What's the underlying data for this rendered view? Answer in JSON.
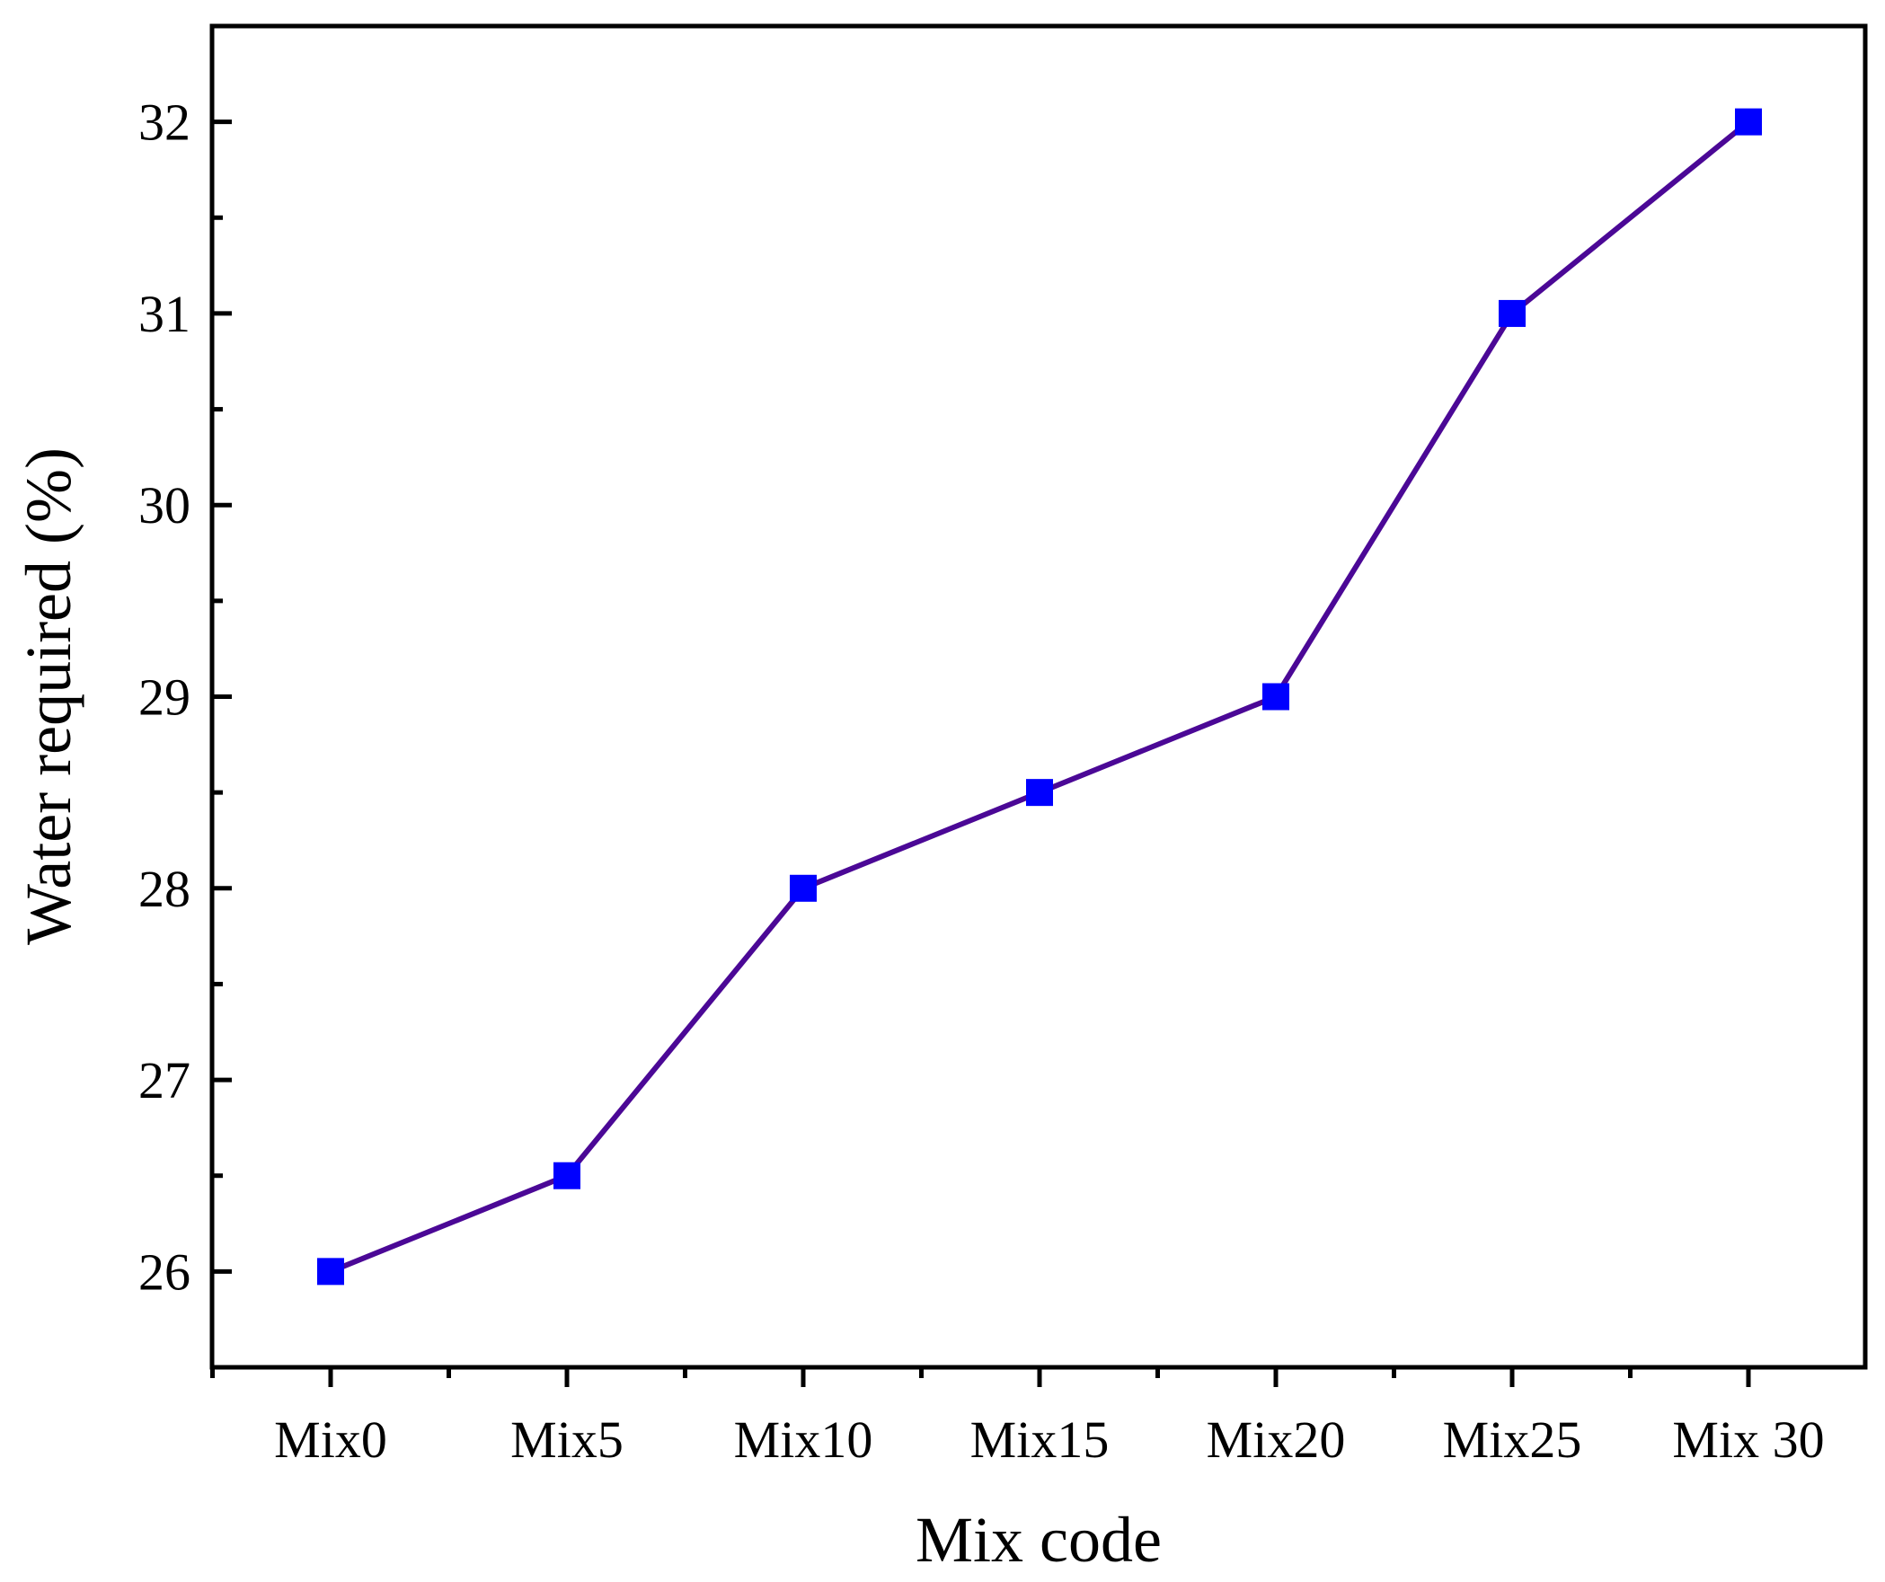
{
  "chart_data": {
    "type": "line",
    "categories": [
      "Mix0",
      "Mix5",
      "Mix10",
      "Mix15",
      "Mix20",
      "Mix25",
      "Mix 30"
    ],
    "series": [
      {
        "values": [
          26,
          26.5,
          28,
          28.5,
          29,
          31,
          32
        ],
        "line_color": "#4B0896",
        "marker_color": "#0000FF",
        "marker": "square"
      }
    ],
    "xlabel": "Mix code",
    "ylabel": "Water required (%)",
    "ylim": [
      25.5,
      32.5
    ],
    "yticks": [
      26,
      27,
      28,
      29,
      30,
      31,
      32
    ],
    "ytick_labels": [
      "26",
      "27",
      "28",
      "29",
      "30",
      "31",
      "32"
    ],
    "grid": false,
    "legend": "none"
  }
}
